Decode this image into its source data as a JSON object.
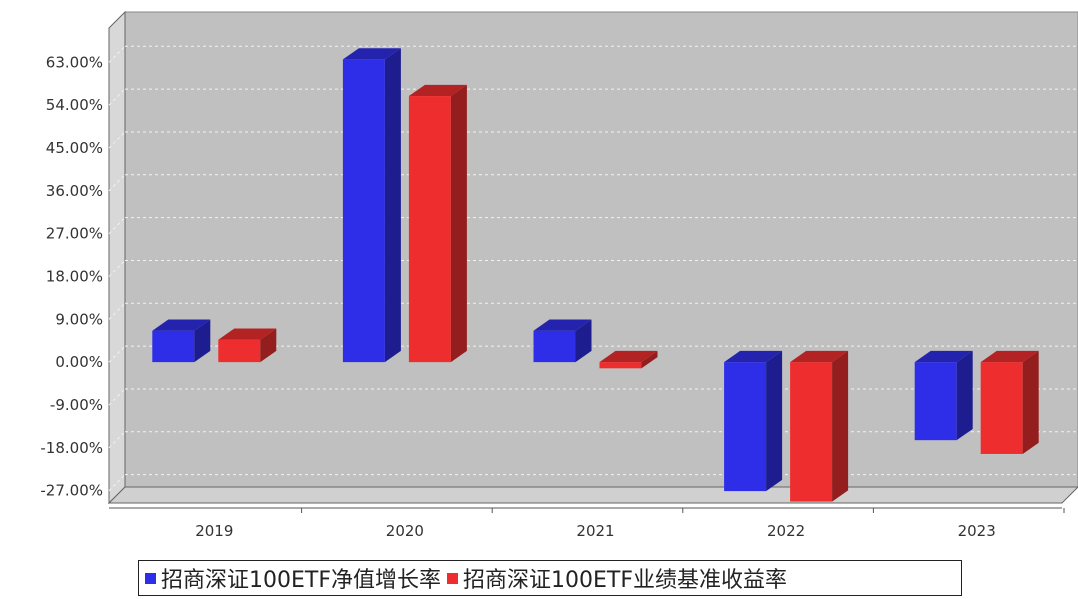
{
  "chart_data": {
    "type": "bar",
    "categories": [
      "2019",
      "2020",
      "2021",
      "2022",
      "2023"
    ],
    "series": [
      {
        "name": "招商深证100ETF净值增长率",
        "color": "#2e2ee8",
        "values": [
          6.6,
          63.6,
          6.6,
          -27.1,
          -16.4
        ]
      },
      {
        "name": "招商深证100ETF业绩基准收益率",
        "color": "#ee2e2e",
        "values": [
          4.7,
          55.9,
          -1.3,
          -29.3,
          -19.3
        ]
      }
    ],
    "yticks": [
      "63.00%",
      "54.00%",
      "45.00%",
      "36.00%",
      "27.00%",
      "18.00%",
      "9.00%",
      "0.00%",
      "-9.00%",
      "-18.00%",
      "-27.00%"
    ],
    "ylim": [
      -29.6,
      70.2
    ],
    "grid": true,
    "legend_position": "bottom",
    "plot_background": "#c0c0c0"
  }
}
